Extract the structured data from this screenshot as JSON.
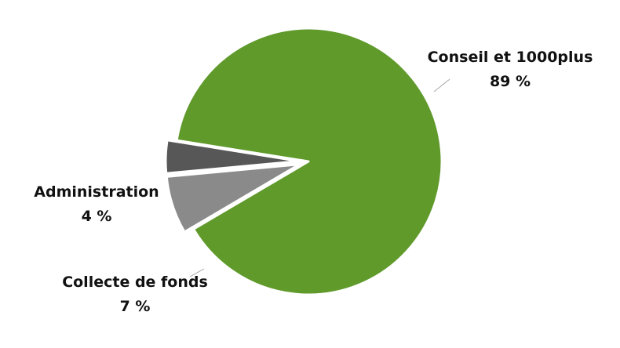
{
  "chart_data": {
    "type": "pie",
    "categories": [
      "Conseil et 1000plus",
      "Collecte de fonds",
      "Administration"
    ],
    "values": [
      89,
      7,
      4
    ],
    "labels": [
      "89 %",
      "7 %",
      "4 %"
    ],
    "colors": [
      "#5f9a2b",
      "#8a8a8a",
      "#575757"
    ],
    "exploded": true
  }
}
